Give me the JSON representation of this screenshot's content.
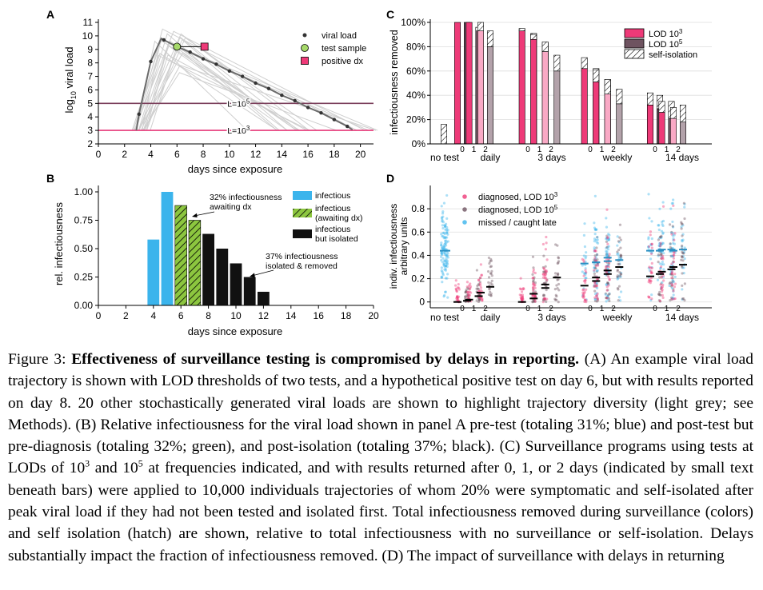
{
  "colors": {
    "pink": "#ee3a78",
    "pink_light": "#f9a9c5",
    "mauve": "#6e5360",
    "mauve_light": "#b3a2aa",
    "blue": "#3bb4ec",
    "green": "#8cc63f",
    "trajectory_grey": "#cfcfcf",
    "line_grey": "#6b6b6b",
    "lod5_line": "#7a3d5a",
    "lod3_line": "#e6397a",
    "sample_green": "#a6d96a",
    "positive_pink": "#ee3a78"
  },
  "panel_labels": {
    "a": "A",
    "b": "B",
    "c": "C",
    "d": "D"
  },
  "chart_data": [
    {
      "panel": "A",
      "type": "line",
      "xlabel": "days since exposure",
      "ylabel_prefix": "log",
      "ylabel_sub": "10",
      "ylabel_suffix": " viral load",
      "xlim": [
        0,
        21
      ],
      "ylim": [
        2,
        11
      ],
      "xticks": [
        0,
        2,
        4,
        6,
        8,
        10,
        12,
        14,
        16,
        18,
        20
      ],
      "yticks": [
        2,
        3,
        4,
        5,
        6,
        7,
        8,
        9,
        10,
        11
      ],
      "main_trajectory": {
        "x": [
          2.9,
          3.1,
          4.0,
          4.8,
          5.0,
          6.0,
          7.0,
          8.0,
          9.0,
          10.0,
          11.0,
          12.0,
          13.0,
          14.0,
          15.0,
          16.0,
          17.0,
          18.0,
          19.0,
          19.4
        ],
        "y": [
          3.0,
          4.2,
          8.1,
          9.8,
          9.7,
          9.2,
          8.8,
          8.3,
          7.9,
          7.4,
          7.0,
          6.5,
          6.1,
          5.6,
          5.2,
          4.7,
          4.3,
          3.8,
          3.3,
          3.05
        ]
      },
      "markers": {
        "x": [
          3.1,
          4.0,
          5.0,
          6.0,
          7.0,
          8.0,
          9.0,
          10.0,
          11.0,
          12.0,
          13.0,
          14.0,
          15.0,
          16.0,
          17.0,
          18.0,
          19.0
        ]
      },
      "test_sample": {
        "x": 6.0,
        "y": 9.2
      },
      "positive_dx": {
        "x": 8.1,
        "y": 9.2
      },
      "thresholds": [
        {
          "y": 5,
          "label": "L=10",
          "sup": "5"
        },
        {
          "y": 3,
          "label": "L=10",
          "sup": "3"
        }
      ],
      "legend": [
        "viral load",
        "test sample",
        "positive dx"
      ]
    },
    {
      "panel": "B",
      "type": "bar",
      "xlabel": "days since exposure",
      "ylabel": "rel. infectiousness",
      "xlim": [
        0,
        20
      ],
      "ylim": [
        0,
        1.05
      ],
      "xticks": [
        0,
        2,
        4,
        6,
        8,
        10,
        12,
        14,
        16,
        18,
        20
      ],
      "yticks": [
        "0.00",
        "0.25",
        "0.50",
        "0.75",
        "1.00"
      ],
      "bars": [
        {
          "x": 4,
          "y": 0.58,
          "kind": "infectious"
        },
        {
          "x": 5,
          "y": 1.0,
          "kind": "infectious"
        },
        {
          "x": 6,
          "y": 0.88,
          "kind": "awaiting"
        },
        {
          "x": 7,
          "y": 0.75,
          "kind": "awaiting"
        },
        {
          "x": 8,
          "y": 0.63,
          "kind": "isolated"
        },
        {
          "x": 9,
          "y": 0.5,
          "kind": "isolated"
        },
        {
          "x": 10,
          "y": 0.37,
          "kind": "isolated"
        },
        {
          "x": 11,
          "y": 0.25,
          "kind": "isolated"
        },
        {
          "x": 12,
          "y": 0.12,
          "kind": "isolated"
        }
      ],
      "legend": [
        {
          "kind": "infectious",
          "lines": [
            "infectious"
          ]
        },
        {
          "kind": "awaiting",
          "lines": [
            "infectious",
            "(awaiting dx)"
          ]
        },
        {
          "kind": "isolated",
          "lines": [
            "infectious",
            "but isolated"
          ]
        }
      ],
      "annotations": [
        {
          "lines": [
            "32% infectiousness",
            "awaiting dx"
          ]
        },
        {
          "lines": [
            "37% infectiousness",
            "isolated & removed"
          ]
        }
      ]
    },
    {
      "panel": "C",
      "type": "bar",
      "ylabel": "infectiousness removed",
      "ylim": [
        0,
        100
      ],
      "yticks": [
        "0%",
        "20%",
        "40%",
        "60%",
        "80%",
        "100%"
      ],
      "categories": [
        "no test",
        "daily",
        "3 days",
        "weekly",
        "14 days"
      ],
      "sub_labels": [
        "0",
        "1",
        "2"
      ],
      "no_test": {
        "surveillance": 0,
        "self_isolation": 16
      },
      "series": [
        {
          "name_prefix": "LOD 10",
          "name_sup": "3",
          "lod": "3",
          "values": [
            [
              100,
              100,
              93
            ],
            [
              93,
              86,
              76
            ],
            [
              62,
              51,
              41
            ],
            [
              32,
              26,
              21
            ]
          ],
          "self_isolation": [
            [
              0,
              0,
              7
            ],
            [
              2,
              4,
              8
            ],
            [
              9,
              10,
              12
            ],
            [
              10,
              9,
              9
            ]
          ]
        },
        {
          "name_prefix": "LOD 10",
          "name_sup": "5",
          "lod": "5",
          "values": [
            [
              100,
              93,
              80
            ],
            [
              86,
              74,
              60
            ],
            [
              52,
              43,
              33
            ],
            [
              29,
              21,
              18
            ]
          ],
          "self_isolation": [
            [
              0,
              3,
              13
            ],
            [
              5,
              9,
              13
            ],
            [
              10,
              10,
              12
            ],
            [
              11,
              14,
              14
            ]
          ]
        }
      ],
      "hatch_label": "self-isolation"
    },
    {
      "panel": "D",
      "type": "scatter",
      "ylabel_lines": [
        "indiv. infectiousness",
        "arbitrary units"
      ],
      "ylim": [
        -0.05,
        1.0
      ],
      "yticks": [
        "0",
        "0.2",
        "0.4",
        "0.6",
        "0.8"
      ],
      "categories": [
        "no test",
        "daily",
        "3 days",
        "weekly",
        "14 days"
      ],
      "sub_labels": [
        "0",
        "1",
        "2"
      ],
      "legend": [
        {
          "prefix": "diagnosed, LOD 10",
          "sup": "3",
          "kind": "lod3"
        },
        {
          "prefix": "diagnosed, LOD 10",
          "sup": "5",
          "kind": "lod5"
        },
        {
          "prefix": "missed / caught late",
          "sup": "",
          "kind": "missed"
        }
      ],
      "no_test_mean": 0.44,
      "diagnosed_means": {
        "lod3": [
          [
            0.0,
            0.02,
            0.08
          ],
          [
            0.0,
            0.07,
            0.15
          ],
          [
            0.14,
            0.21,
            0.27
          ],
          [
            0.22,
            0.26,
            0.3
          ]
        ],
        "lod5": [
          [
            0.01,
            0.05,
            0.13
          ],
          [
            0.03,
            0.12,
            0.21
          ],
          [
            0.18,
            0.24,
            0.3
          ],
          [
            0.24,
            0.28,
            0.32
          ]
        ]
      },
      "missed_means": {
        "lod3": [
          [
            0,
            0,
            0
          ],
          [
            0,
            0,
            0
          ],
          [
            0.33,
            0.34,
            0.38
          ],
          [
            0.44,
            0.45,
            0.44
          ]
        ],
        "lod5": [
          [
            0,
            0,
            0
          ],
          [
            0,
            0,
            0
          ],
          [
            0.34,
            0.35,
            0.36
          ],
          [
            0.44,
            0.45,
            0.45
          ]
        ]
      }
    }
  ],
  "caption": {
    "figure_label": "Figure 3:",
    "bold_title": "Effectiveness of surveillance testing is compromised by delays in reporting.",
    "part1": "(A) An example viral load trajectory is shown with LOD thresholds of two tests, and a hypothetical positive test on day 6, but with results reported on day 8. 20 other stochastically generated viral loads are shown to highlight trajectory diversity (light grey; see Methods). (B) Relative infectiousness for the viral load shown in panel A pre-test (totaling 31%; blue) and post-test but pre-diagnosis (totaling 32%; green), and post-isolation (totaling 37%; black). (C) Surveillance programs using tests at LODs of 10",
    "sup1": "3",
    "part2": " and 10",
    "sup2": "5",
    "part3": " at frequencies indicated, and with results returned after 0, 1, or 2 days (indicated by small text beneath bars) were applied to 10,000 individuals trajectories of whom 20% were symptomatic and self-isolated after peak viral load if they had not been tested and isolated first. Total infectiousness removed during surveillance (colors) and self isolation (hatch) are shown, relative to total infectiousness with no surveillance or self-isolation. Delays substantially impact the fraction of infectiousness removed. (D) The impact of surveillance with delays in returning"
  }
}
